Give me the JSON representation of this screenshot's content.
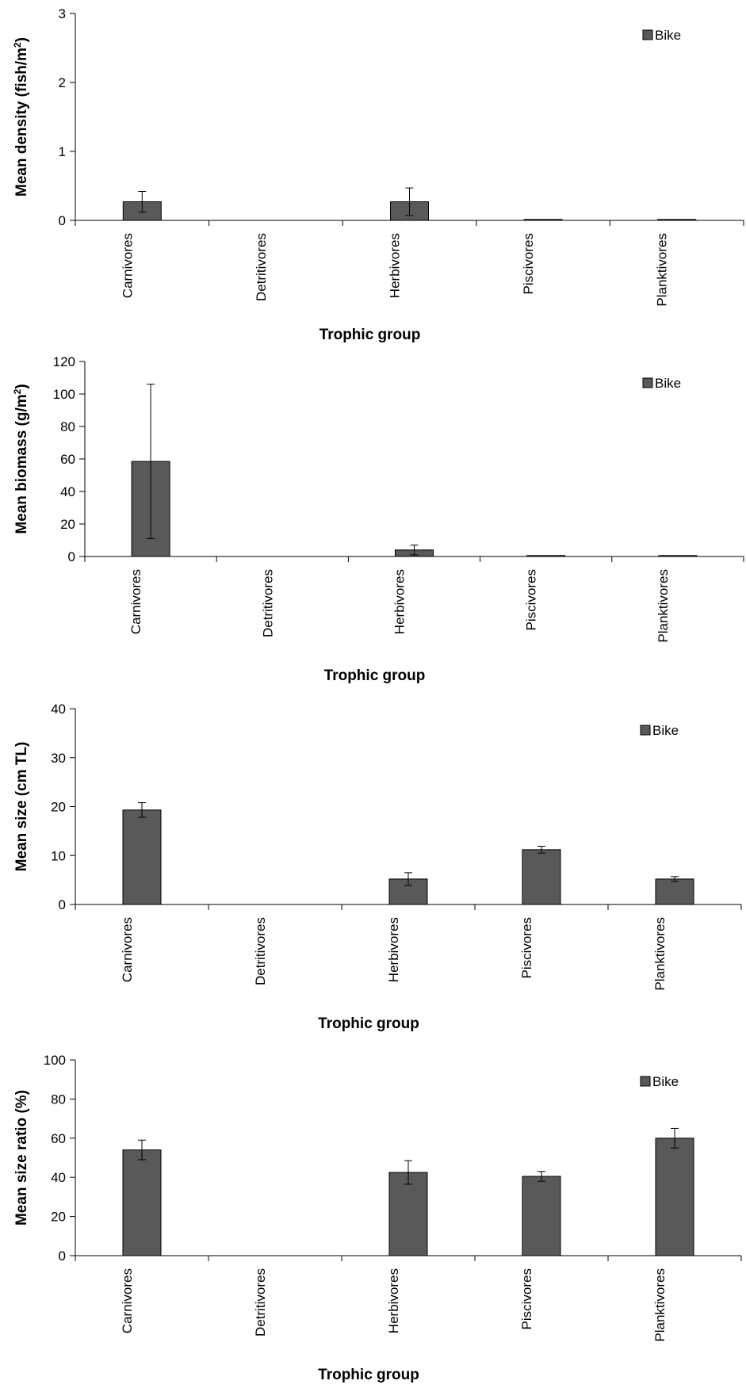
{
  "chart_data": [
    {
      "type": "bar",
      "categories": [
        "Carnivores",
        "Detritivores",
        "Herbivores",
        "Piscivores",
        "Planktivores"
      ],
      "series": [
        {
          "name": "Bike",
          "values": [
            0.27,
            0,
            0.27,
            0.01,
            0.01
          ],
          "errors": [
            0.15,
            0,
            0.2,
            0,
            0
          ]
        }
      ],
      "ylabel_main": "Mean density (fish/m",
      "ylabel_sup": "2",
      "ylabel_end": ")",
      "xlabel": "Trophic group",
      "ylim": [
        0,
        3
      ],
      "yticks": [
        0,
        1,
        2,
        3
      ],
      "grid": false,
      "legend_position": "top-right"
    },
    {
      "type": "bar",
      "categories": [
        "Carnivores",
        "Detritivores",
        "Herbivores",
        "Piscivores",
        "Planktivores"
      ],
      "series": [
        {
          "name": "Bike",
          "values": [
            58.5,
            0,
            4,
            0.5,
            0.5
          ],
          "errors": [
            47.5,
            0,
            3,
            0,
            0
          ]
        }
      ],
      "ylabel_main": "Mean biomass (g/m",
      "ylabel_sup": "2",
      "ylabel_end": ")",
      "xlabel": "Trophic group",
      "ylim": [
        0,
        120
      ],
      "yticks": [
        0,
        20,
        40,
        60,
        80,
        100,
        120
      ],
      "grid": false,
      "legend_position": "top-right"
    },
    {
      "type": "bar",
      "categories": [
        "Carnivores",
        "Detritivores",
        "Herbivores",
        "Piscivores",
        "Planktivores"
      ],
      "series": [
        {
          "name": "Bike",
          "values": [
            19.3,
            0,
            5.2,
            11.2,
            5.2
          ],
          "errors": [
            1.5,
            0,
            1.3,
            0.7,
            0.5
          ]
        }
      ],
      "ylabel_main": "Mean size (cm TL)",
      "ylabel_sup": "",
      "ylabel_end": "",
      "xlabel": "Trophic group",
      "ylim": [
        0,
        40
      ],
      "yticks": [
        0,
        10,
        20,
        30,
        40
      ],
      "grid": false,
      "legend_position": "top-right"
    },
    {
      "type": "bar",
      "categories": [
        "Carnivores",
        "Detritivores",
        "Herbivores",
        "Piscivores",
        "Planktivores"
      ],
      "series": [
        {
          "name": "Bike",
          "values": [
            54,
            0,
            42.5,
            40.5,
            60
          ],
          "errors": [
            5,
            0,
            6,
            2.5,
            5
          ]
        }
      ],
      "ylabel_main": "Mean size ratio (%)",
      "ylabel_sup": "",
      "ylabel_end": "",
      "xlabel": "Trophic group",
      "ylim": [
        0,
        100
      ],
      "yticks": [
        0,
        20,
        40,
        60,
        80,
        100
      ],
      "grid": false,
      "legend_position": "top-right"
    }
  ],
  "colors": {
    "bar_fill": "#595959",
    "bar_stroke": "#000000",
    "axis": "#000000"
  }
}
